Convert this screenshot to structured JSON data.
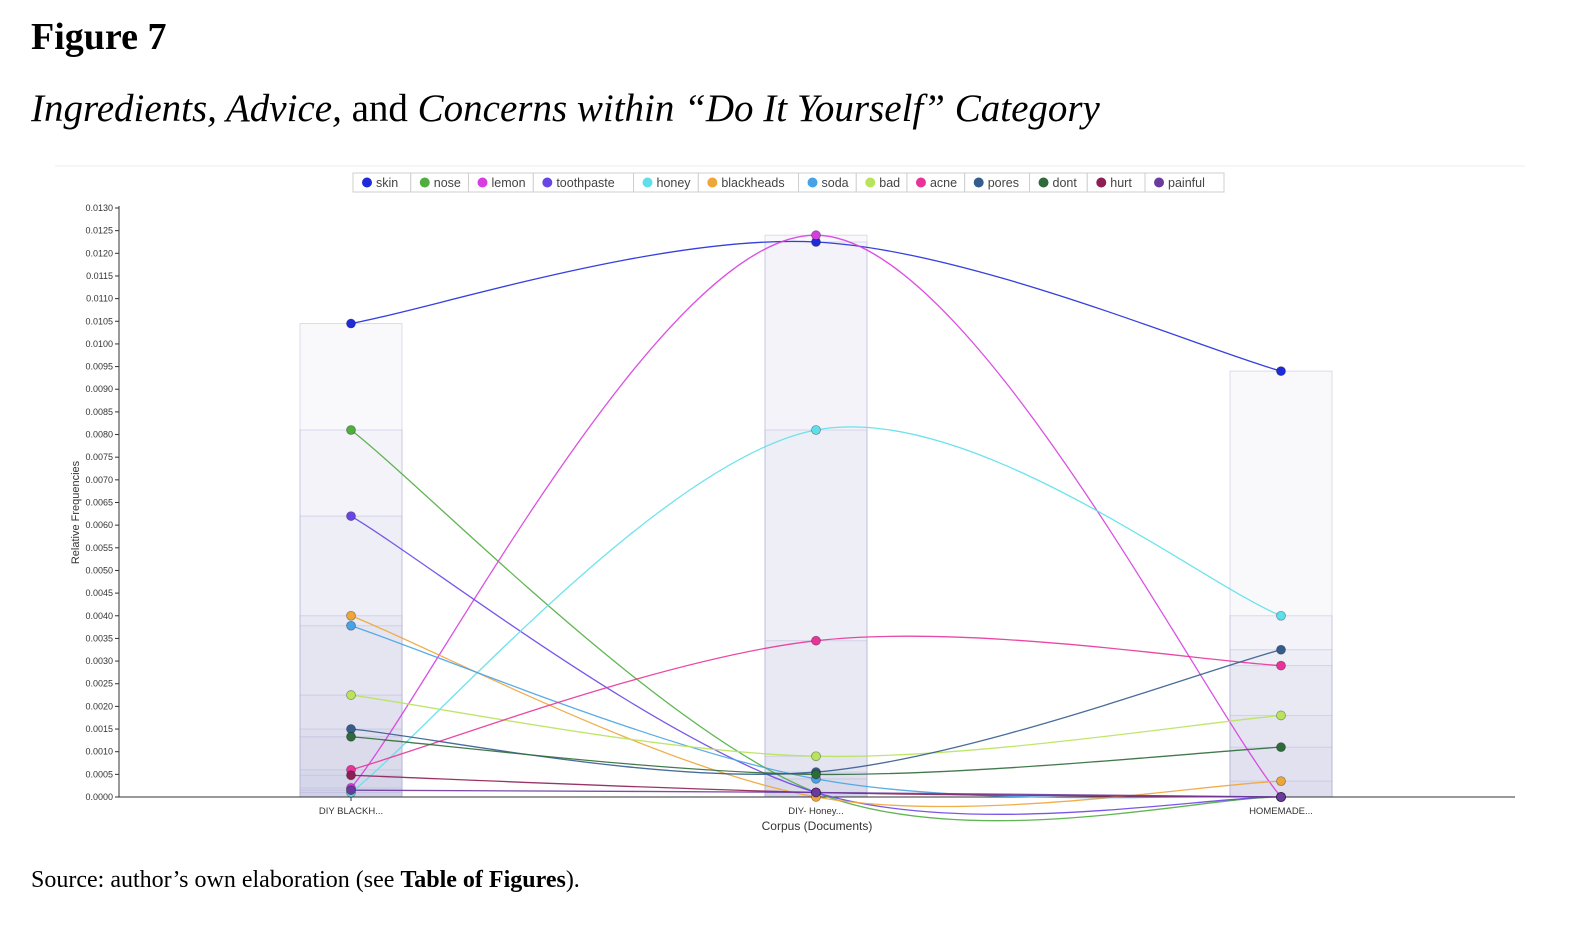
{
  "figure": {
    "label": "Figure 7",
    "title_parts": [
      {
        "text": "Ingredients, Advice,",
        "italic": true
      },
      {
        "text": " and ",
        "italic": false
      },
      {
        "text": "Concerns within “Do It Yourself”",
        "italic": true
      },
      {
        "text": " Category",
        "italic": true
      }
    ],
    "source_prefix": "Source: author’s own elaboration (see ",
    "source_bold": "Table of Figures",
    "source_suffix": ")."
  },
  "chart_data": {
    "type": "line",
    "xlabel": "Corpus (Documents)",
    "ylabel": "Relative Frequencies",
    "ylim": [
      0,
      0.013
    ],
    "ytick_step": 0.0005,
    "categories": [
      "DIY BLACKH...",
      "DIY- Honey...",
      "HOMEMADE..."
    ],
    "legend_position": "top-center",
    "grid": false,
    "series": [
      {
        "name": "skin",
        "color": "#1f2bd9",
        "values": [
          0.01045,
          0.01225,
          0.0094
        ]
      },
      {
        "name": "nose",
        "color": "#4fae3f",
        "values": [
          0.0081,
          0.0001,
          0.0
        ]
      },
      {
        "name": "lemon",
        "color": "#d63ee0",
        "values": [
          0.0002,
          0.0124,
          0.0
        ]
      },
      {
        "name": "toothpaste",
        "color": "#6a45e6",
        "values": [
          0.0062,
          0.0001,
          0.0
        ]
      },
      {
        "name": "honey",
        "color": "#5ee0ea",
        "values": [
          0.0001,
          0.0081,
          0.004
        ]
      },
      {
        "name": "blackheads",
        "color": "#eea53a",
        "values": [
          0.004,
          0.0,
          0.00035
        ]
      },
      {
        "name": "soda",
        "color": "#47a3e6",
        "values": [
          0.00378,
          0.0004,
          0.0
        ]
      },
      {
        "name": "bad",
        "color": "#b8e35a",
        "values": [
          0.00225,
          0.0009,
          0.0018
        ]
      },
      {
        "name": "acne",
        "color": "#e8349a",
        "values": [
          0.0006,
          0.00345,
          0.0029
        ]
      },
      {
        "name": "pores",
        "color": "#345d8e",
        "values": [
          0.0015,
          0.00055,
          0.00325
        ]
      },
      {
        "name": "dont",
        "color": "#2f6b3a",
        "values": [
          0.00133,
          0.0005,
          0.0011
        ]
      },
      {
        "name": "hurt",
        "color": "#8e1f55",
        "values": [
          0.00048,
          0.0001,
          0.0
        ]
      },
      {
        "name": "painful",
        "color": "#6b3a9e",
        "values": [
          0.00015,
          0.0001,
          0.0
        ]
      }
    ]
  }
}
